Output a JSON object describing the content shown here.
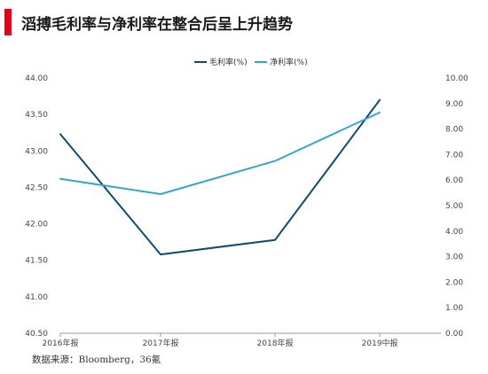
{
  "title": "滔搏毛利率与净利率在整合后呈上升趋势",
  "source": "数据来源：Bloomberg，36氪",
  "colors": {
    "accent": "#e3001b",
    "gross": "#0f4c6b",
    "net": "#36a6c8"
  },
  "chart_data": {
    "type": "line",
    "categories": [
      "2016年报",
      "2017年报",
      "2018年报",
      "2019中报"
    ],
    "series": [
      {
        "name": "毛利率(%)",
        "axis": "left",
        "values": [
          43.23,
          41.58,
          41.78,
          43.7
        ]
      },
      {
        "name": "净利率(%)",
        "axis": "right",
        "values": [
          6.05,
          5.45,
          6.75,
          8.65
        ]
      }
    ],
    "y_left": {
      "min": 40.5,
      "max": 44.0,
      "ticks": [
        "44.00",
        "43.50",
        "43.00",
        "42.50",
        "42.00",
        "41.50",
        "41.00",
        "40.50"
      ]
    },
    "y_right": {
      "min": 0,
      "max": 10,
      "ticks": [
        "10.00",
        "9.00",
        "8.00",
        "7.00",
        "6.00",
        "5.00",
        "4.00",
        "3.00",
        "2.00",
        "1.00",
        "0.00"
      ]
    },
    "grid": false,
    "legend_position": "top-center"
  }
}
